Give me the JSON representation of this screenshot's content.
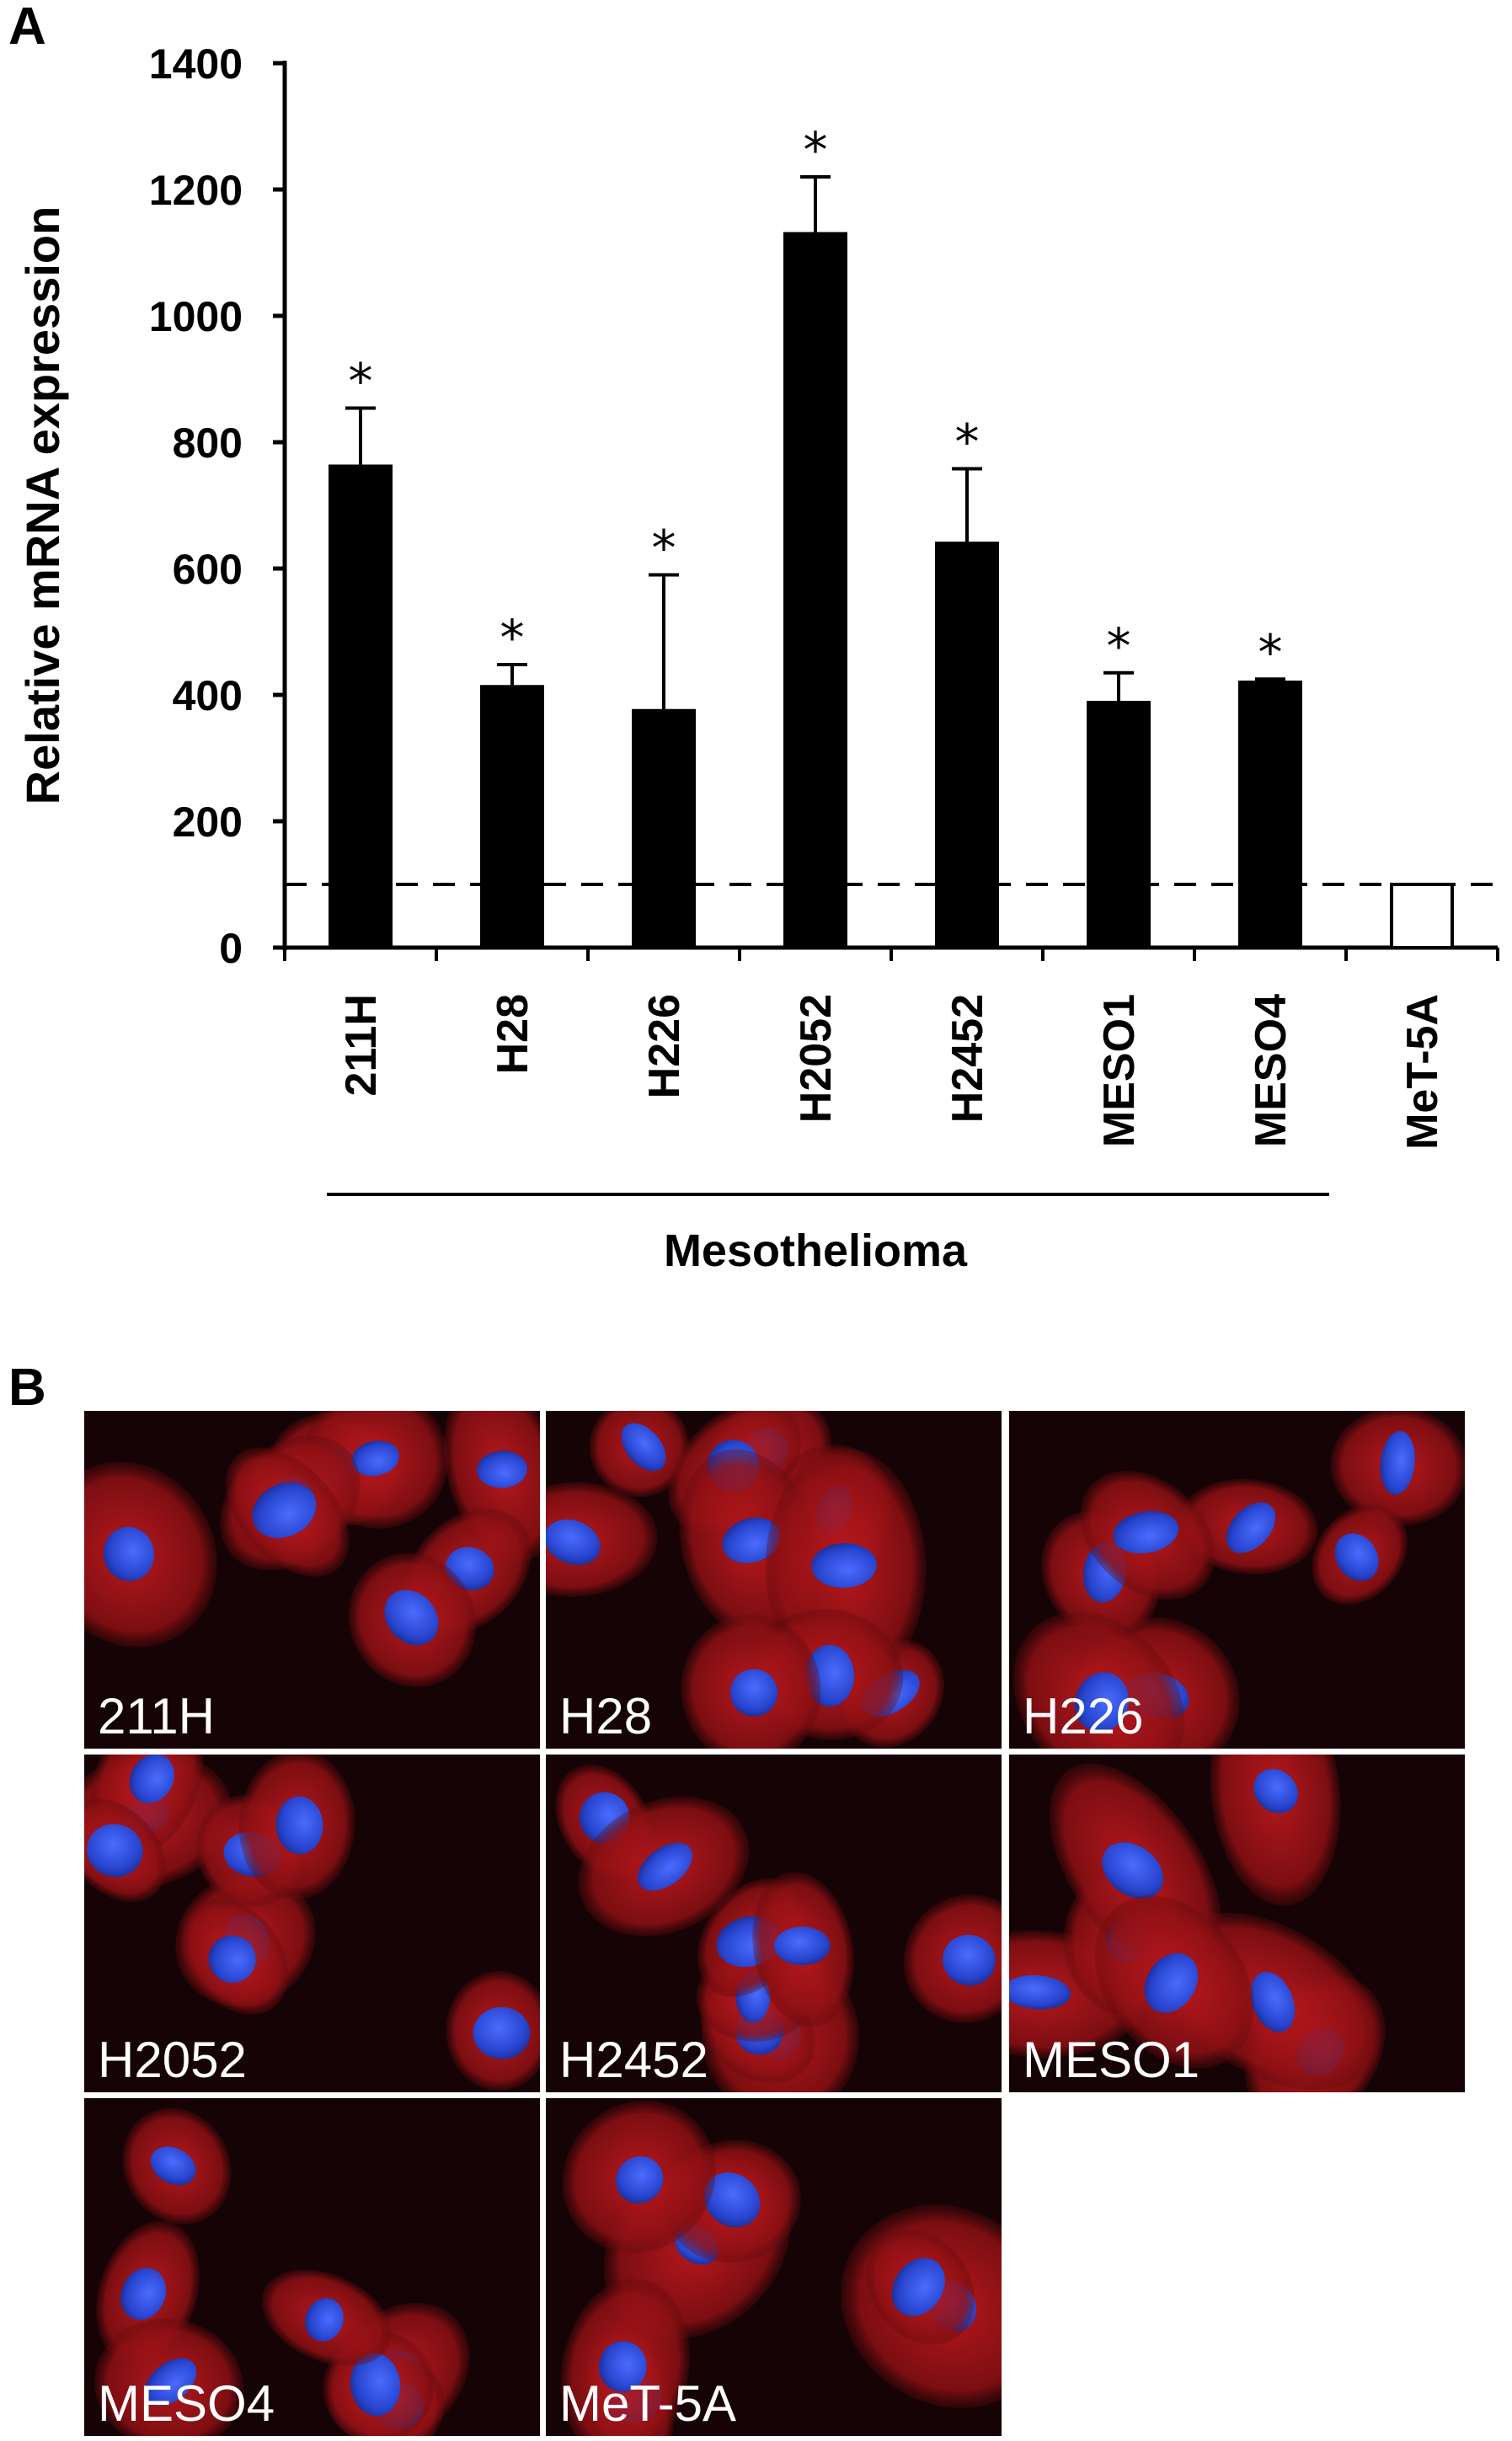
{
  "panel_a_letter": "A",
  "panel_b_letter": "B",
  "chart_data": {
    "type": "bar",
    "ylabel": "Relative mRNA expression",
    "ylim": [
      0,
      1400
    ],
    "yticks": [
      "0",
      "200",
      "400",
      "600",
      "800",
      "1000",
      "1200",
      "1400"
    ],
    "categories": [
      "211H",
      "H28",
      "H226",
      "H2052",
      "H2452",
      "MESO1",
      "MESO4",
      "MeT-5A"
    ],
    "values": [
      762,
      413,
      375,
      1130,
      640,
      388,
      420,
      100
    ],
    "errors": [
      92,
      35,
      215,
      90,
      118,
      47,
      5,
      0
    ],
    "significant": [
      true,
      true,
      true,
      true,
      true,
      true,
      true,
      false
    ],
    "significance_marker": "*",
    "bar_fill": [
      "#000000",
      "#000000",
      "#000000",
      "#000000",
      "#000000",
      "#000000",
      "#000000",
      "#ffffff"
    ],
    "reference_line": 100,
    "group_label": "Mesothelioma",
    "group_span": [
      "211H",
      "MESO4"
    ],
    "grid": false,
    "legend": "none"
  },
  "panel_b": {
    "tiles": [
      {
        "label": "211H"
      },
      {
        "label": "H28"
      },
      {
        "label": "H226"
      },
      {
        "label": "H2052"
      },
      {
        "label": "H2452"
      },
      {
        "label": "MESO1"
      },
      {
        "label": "MESO4"
      },
      {
        "label": "MeT-5A"
      }
    ],
    "colors": {
      "cytoplasm": "#c0191e",
      "nucleus": "#2d4fd6",
      "background": "#160305"
    }
  }
}
